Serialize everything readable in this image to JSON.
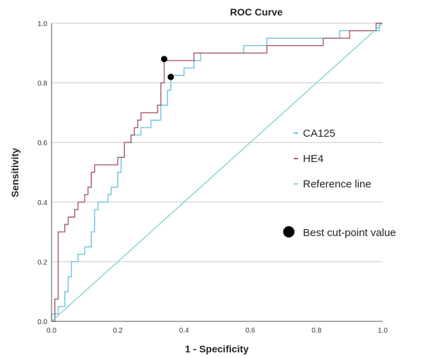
{
  "chart_data": {
    "type": "line",
    "title": "ROC Curve",
    "xlabel": "1 - Specificity",
    "ylabel": "Sensitivity",
    "xlim": [
      0,
      1
    ],
    "ylim": [
      0,
      1
    ],
    "x_ticks": [
      "0.0",
      "0.2",
      "0.4",
      "0.6",
      "0.8",
      "1.0"
    ],
    "y_ticks": [
      "0.0",
      "0.2",
      "0.4",
      "0.6",
      "0.8",
      "1.0"
    ],
    "grid": "horizontal",
    "legend_position": "right",
    "series": [
      {
        "name": "CA125",
        "color": "#6cc3dd",
        "points": [
          [
            0,
            0
          ],
          [
            0,
            0.025
          ],
          [
            0.02,
            0.025
          ],
          [
            0.02,
            0.05
          ],
          [
            0.04,
            0.05
          ],
          [
            0.04,
            0.1
          ],
          [
            0.05,
            0.1
          ],
          [
            0.05,
            0.15
          ],
          [
            0.06,
            0.15
          ],
          [
            0.06,
            0.2
          ],
          [
            0.08,
            0.2
          ],
          [
            0.08,
            0.225
          ],
          [
            0.1,
            0.225
          ],
          [
            0.1,
            0.25
          ],
          [
            0.12,
            0.25
          ],
          [
            0.12,
            0.3
          ],
          [
            0.13,
            0.3
          ],
          [
            0.13,
            0.375
          ],
          [
            0.14,
            0.375
          ],
          [
            0.14,
            0.4
          ],
          [
            0.17,
            0.4
          ],
          [
            0.17,
            0.425
          ],
          [
            0.18,
            0.425
          ],
          [
            0.18,
            0.45
          ],
          [
            0.2,
            0.45
          ],
          [
            0.2,
            0.5
          ],
          [
            0.21,
            0.5
          ],
          [
            0.21,
            0.55
          ],
          [
            0.22,
            0.55
          ],
          [
            0.22,
            0.6
          ],
          [
            0.24,
            0.6
          ],
          [
            0.24,
            0.625
          ],
          [
            0.27,
            0.625
          ],
          [
            0.27,
            0.65
          ],
          [
            0.3,
            0.65
          ],
          [
            0.3,
            0.675
          ],
          [
            0.33,
            0.675
          ],
          [
            0.33,
            0.725
          ],
          [
            0.35,
            0.725
          ],
          [
            0.35,
            0.775
          ],
          [
            0.36,
            0.775
          ],
          [
            0.36,
            0.825
          ],
          [
            0.4,
            0.825
          ],
          [
            0.4,
            0.85
          ],
          [
            0.43,
            0.85
          ],
          [
            0.43,
            0.875
          ],
          [
            0.45,
            0.875
          ],
          [
            0.45,
            0.9
          ],
          [
            0.58,
            0.9
          ],
          [
            0.58,
            0.925
          ],
          [
            0.65,
            0.925
          ],
          [
            0.65,
            0.95
          ],
          [
            0.87,
            0.95
          ],
          [
            0.87,
            0.975
          ],
          [
            0.99,
            0.975
          ],
          [
            0.99,
            1
          ],
          [
            1,
            1
          ]
        ]
      },
      {
        "name": "HE4",
        "color": "#a8576f",
        "points": [
          [
            0,
            0
          ],
          [
            0.01,
            0
          ],
          [
            0.01,
            0.075
          ],
          [
            0.02,
            0.075
          ],
          [
            0.02,
            0.3
          ],
          [
            0.04,
            0.3
          ],
          [
            0.04,
            0.325
          ],
          [
            0.05,
            0.325
          ],
          [
            0.05,
            0.35
          ],
          [
            0.07,
            0.35
          ],
          [
            0.07,
            0.375
          ],
          [
            0.08,
            0.375
          ],
          [
            0.08,
            0.4
          ],
          [
            0.1,
            0.4
          ],
          [
            0.1,
            0.425
          ],
          [
            0.11,
            0.425
          ],
          [
            0.11,
            0.45
          ],
          [
            0.12,
            0.45
          ],
          [
            0.12,
            0.5
          ],
          [
            0.13,
            0.5
          ],
          [
            0.13,
            0.525
          ],
          [
            0.2,
            0.525
          ],
          [
            0.2,
            0.55
          ],
          [
            0.22,
            0.55
          ],
          [
            0.22,
            0.6
          ],
          [
            0.24,
            0.6
          ],
          [
            0.24,
            0.625
          ],
          [
            0.25,
            0.625
          ],
          [
            0.25,
            0.65
          ],
          [
            0.26,
            0.65
          ],
          [
            0.26,
            0.675
          ],
          [
            0.27,
            0.675
          ],
          [
            0.27,
            0.7
          ],
          [
            0.32,
            0.7
          ],
          [
            0.32,
            0.725
          ],
          [
            0.33,
            0.725
          ],
          [
            0.33,
            0.8
          ],
          [
            0.34,
            0.8
          ],
          [
            0.34,
            0.875
          ],
          [
            0.43,
            0.875
          ],
          [
            0.43,
            0.9
          ],
          [
            0.65,
            0.9
          ],
          [
            0.65,
            0.925
          ],
          [
            0.82,
            0.925
          ],
          [
            0.82,
            0.95
          ],
          [
            0.9,
            0.95
          ],
          [
            0.9,
            0.975
          ],
          [
            0.98,
            0.975
          ],
          [
            0.98,
            1
          ],
          [
            1,
            1
          ]
        ]
      },
      {
        "name": "Reference line",
        "color": "#7fd3d0",
        "points": [
          [
            0,
            0
          ],
          [
            1,
            1
          ]
        ]
      }
    ],
    "markers": [
      {
        "series": "HE4",
        "x": 0.34,
        "y": 0.88
      },
      {
        "series": "CA125",
        "x": 0.36,
        "y": 0.82
      }
    ],
    "marker_legend": "Best cut-point value"
  }
}
